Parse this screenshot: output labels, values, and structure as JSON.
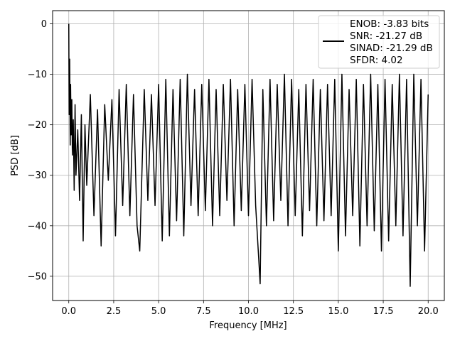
{
  "chart_data": {
    "type": "line",
    "title": "",
    "xlabel": "Frequency [MHz]",
    "ylabel": "PSD [dB]",
    "xlim": [
      -0.9,
      20.9
    ],
    "ylim": [
      -54.8,
      2.6
    ],
    "xticks": [
      0.0,
      2.5,
      5.0,
      7.5,
      10.0,
      12.5,
      15.0,
      17.5,
      20.0
    ],
    "xtick_labels": [
      "0.0",
      "2.5",
      "5.0",
      "7.5",
      "10.0",
      "12.5",
      "15.0",
      "17.5",
      "20.0"
    ],
    "yticks": [
      0,
      -10,
      -20,
      -30,
      -40,
      -50
    ],
    "ytick_labels": [
      "0",
      "−10",
      "−20",
      "−30",
      "−40",
      "−50"
    ],
    "grid": true,
    "legend_position": "top-right",
    "legend": [
      "ENOB: -3.83 bits",
      "SNR: -21.27 dB",
      "SINAD: -21.29 dB",
      "SFDR: 4.02"
    ],
    "series": [
      {
        "color": "#000000",
        "x": [
          0.0,
          0.02,
          0.05,
          0.08,
          0.1,
          0.13,
          0.17,
          0.2,
          0.25,
          0.3,
          0.35,
          0.4,
          0.5,
          0.6,
          0.7,
          0.8,
          0.9,
          1.0,
          1.2,
          1.4,
          1.6,
          1.8,
          2.0,
          2.2,
          2.4,
          2.6,
          2.8,
          3.0,
          3.2,
          3.4,
          3.6,
          3.8,
          3.95,
          4.2,
          4.4,
          4.6,
          4.8,
          5.0,
          5.2,
          5.4,
          5.6,
          5.8,
          6.0,
          6.2,
          6.4,
          6.6,
          6.8,
          7.0,
          7.2,
          7.4,
          7.6,
          7.8,
          8.0,
          8.2,
          8.4,
          8.6,
          8.8,
          9.0,
          9.2,
          9.4,
          9.6,
          9.8,
          10.0,
          10.2,
          10.4,
          10.65,
          10.8,
          11.0,
          11.2,
          11.4,
          11.6,
          11.8,
          12.0,
          12.2,
          12.4,
          12.6,
          12.8,
          13.0,
          13.2,
          13.4,
          13.6,
          13.8,
          14.0,
          14.2,
          14.4,
          14.6,
          14.8,
          15.0,
          15.2,
          15.4,
          15.6,
          15.8,
          16.0,
          16.2,
          16.4,
          16.6,
          16.8,
          17.0,
          17.2,
          17.4,
          17.6,
          17.8,
          18.0,
          18.2,
          18.4,
          18.6,
          18.8,
          19.0,
          19.2,
          19.4,
          19.6,
          19.8,
          20.0
        ],
        "y": [
          0.0,
          -18.0,
          -7.0,
          -24.0,
          -12.0,
          -22.0,
          -15.0,
          -26.0,
          -19.0,
          -33.0,
          -16.0,
          -30.0,
          -21.0,
          -35.0,
          -18.0,
          -43.0,
          -20.0,
          -32.0,
          -14.0,
          -38.0,
          -17.0,
          -44.0,
          -16.0,
          -31.0,
          -15.0,
          -42.0,
          -13.0,
          -36.0,
          -12.0,
          -38.0,
          -14.0,
          -40.0,
          -45.0,
          -13.0,
          -35.0,
          -14.0,
          -36.0,
          -12.0,
          -43.0,
          -11.0,
          -42.0,
          -13.0,
          -39.0,
          -11.0,
          -42.0,
          -10.0,
          -36.0,
          -13.0,
          -38.0,
          -12.0,
          -37.0,
          -11.0,
          -40.0,
          -13.0,
          -38.0,
          -12.0,
          -35.0,
          -11.0,
          -40.0,
          -13.0,
          -37.0,
          -12.0,
          -38.0,
          -11.0,
          -36.0,
          -51.5,
          -13.0,
          -40.0,
          -11.0,
          -39.0,
          -12.0,
          -35.0,
          -10.0,
          -40.0,
          -11.0,
          -38.0,
          -13.0,
          -42.0,
          -12.0,
          -37.0,
          -11.0,
          -40.0,
          -13.0,
          -39.0,
          -12.0,
          -38.0,
          -11.0,
          -45.0,
          -10.0,
          -42.0,
          -13.0,
          -38.0,
          -11.0,
          -44.0,
          -12.0,
          -40.0,
          -10.0,
          -41.0,
          -12.0,
          -45.0,
          -11.0,
          -43.0,
          -12.0,
          -40.0,
          -10.0,
          -42.0,
          -11.0,
          -52.0,
          -10.0,
          -40.0,
          -11.0,
          -45.0,
          -14.0
        ]
      }
    ]
  }
}
